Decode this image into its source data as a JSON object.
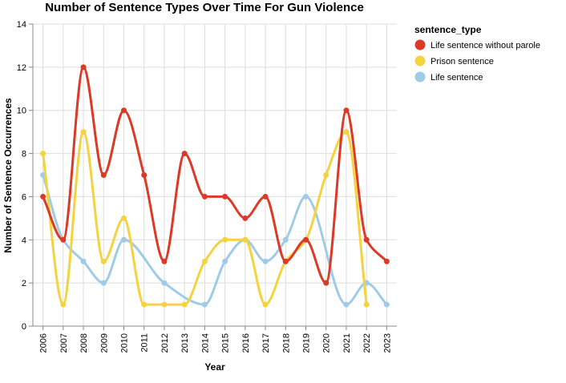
{
  "chart_data": {
    "type": "line",
    "title": "Number of Sentence Types Over Time For Gun Violence",
    "xlabel": "Year",
    "ylabel": "Number of Sentence Occurrences",
    "x": [
      "2006",
      "2007",
      "2008",
      "2009",
      "2010",
      "2011",
      "2012",
      "2013",
      "2014",
      "2015",
      "2016",
      "2017",
      "2018",
      "2019",
      "2020",
      "2021",
      "2022",
      "2023"
    ],
    "ylim": [
      0,
      14
    ],
    "yticks": [
      0,
      2,
      4,
      6,
      8,
      10,
      12,
      14
    ],
    "grid": true,
    "interpolation": "smooth",
    "legend": {
      "title": "sentence_type",
      "position": "right"
    },
    "series": [
      {
        "name": "Life sentence without parole",
        "color": "#dc3a26",
        "points": [
          [
            "2006",
            6
          ],
          [
            "2007",
            4
          ],
          [
            "2008",
            12
          ],
          [
            "2009",
            7
          ],
          [
            "2010",
            10
          ],
          [
            "2011",
            7
          ],
          [
            "2012",
            3
          ],
          [
            "2013",
            8
          ],
          [
            "2014",
            6
          ],
          [
            "2015",
            6
          ],
          [
            "2016",
            5
          ],
          [
            "2017",
            6
          ],
          [
            "2018",
            3
          ],
          [
            "2019",
            4
          ],
          [
            "2020",
            2
          ],
          [
            "2021",
            10
          ],
          [
            "2022",
            4
          ],
          [
            "2023",
            3
          ]
        ]
      },
      {
        "name": "Prison sentence",
        "color": "#f5d33f",
        "points": [
          [
            "2006",
            8
          ],
          [
            "2007",
            1
          ],
          [
            "2008",
            9
          ],
          [
            "2009",
            3
          ],
          [
            "2010",
            5
          ],
          [
            "2011",
            1
          ],
          [
            "2012",
            1
          ],
          [
            "2013",
            1
          ],
          [
            "2014",
            3
          ],
          [
            "2015",
            4
          ],
          [
            "2016",
            4
          ],
          [
            "2017",
            1
          ],
          [
            "2018",
            3
          ],
          [
            "2019",
            4
          ],
          [
            "2020",
            7
          ],
          [
            "2021",
            9
          ],
          [
            "2022",
            1
          ]
        ]
      },
      {
        "name": "Life sentence",
        "color": "#a0cbe8",
        "points": [
          [
            "2006",
            7
          ],
          [
            "2007",
            4
          ],
          [
            "2008",
            3
          ],
          [
            "2009",
            2
          ],
          [
            "2010",
            4
          ],
          [
            "2012",
            2
          ],
          [
            "2014",
            1
          ],
          [
            "2015",
            3
          ],
          [
            "2016",
            4
          ],
          [
            "2017",
            3
          ],
          [
            "2018",
            4
          ],
          [
            "2019",
            6
          ],
          [
            "2021",
            1
          ],
          [
            "2022",
            2
          ],
          [
            "2023",
            1
          ]
        ]
      }
    ]
  }
}
